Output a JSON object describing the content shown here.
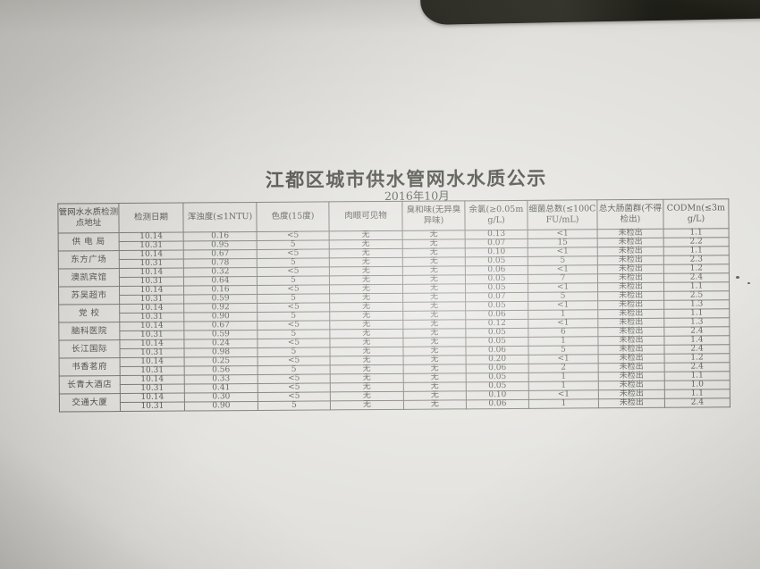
{
  "colors": {
    "background": "#11110b",
    "paper": "#deddd9",
    "ink": "#32322d",
    "table_border": "#5f5e56"
  },
  "document": {
    "title": "江都区城市供水管网水水质公示",
    "subtitle": "2016年10月"
  },
  "table": {
    "columns": [
      {
        "key": "location",
        "label": "管网水水质检测点地址"
      },
      {
        "key": "date",
        "label": "检测日期"
      },
      {
        "key": "turbidity",
        "label": "浑浊度(≤1NTU)"
      },
      {
        "key": "chroma",
        "label": "色度(15度)"
      },
      {
        "key": "visible",
        "label": "肉眼可见物"
      },
      {
        "key": "odor",
        "label": "臭和味(无异臭异味)"
      },
      {
        "key": "chlorine",
        "label": "余氯(≥0.05mg/L)"
      },
      {
        "key": "bacteria",
        "label": "细菌总数(≤100CFU/mL)"
      },
      {
        "key": "coliform",
        "label": "总大肠菌群(不得检出)"
      },
      {
        "key": "codmn",
        "label": "CODMn(≤3mg/L)"
      }
    ],
    "groups": [
      {
        "location": "供 电 局",
        "rows": [
          {
            "date": "10.14",
            "turbidity": "0.16",
            "chroma": "<5",
            "visible": "无",
            "odor": "无",
            "chlorine": "0.13",
            "bacteria": "<1",
            "coliform": "未检出",
            "codmn": "1.1"
          },
          {
            "date": "10.31",
            "turbidity": "0.95",
            "chroma": "5",
            "visible": "无",
            "odor": "无",
            "chlorine": "0.07",
            "bacteria": "15",
            "coliform": "未检出",
            "codmn": "2.2"
          }
        ]
      },
      {
        "location": "东方广场",
        "rows": [
          {
            "date": "10.14",
            "turbidity": "0.67",
            "chroma": "<5",
            "visible": "无",
            "odor": "无",
            "chlorine": "0.10",
            "bacteria": "<1",
            "coliform": "未检出",
            "codmn": "1.1"
          },
          {
            "date": "10.31",
            "turbidity": "0.78",
            "chroma": "5",
            "visible": "无",
            "odor": "无",
            "chlorine": "0.05",
            "bacteria": "5",
            "coliform": "未检出",
            "codmn": "2.3"
          }
        ]
      },
      {
        "location": "澳凯宾馆",
        "rows": [
          {
            "date": "10.14",
            "turbidity": "0.32",
            "chroma": "<5",
            "visible": "无",
            "odor": "无",
            "chlorine": "0.06",
            "bacteria": "<1",
            "coliform": "未检出",
            "codmn": "1.2"
          },
          {
            "date": "10.31",
            "turbidity": "0.64",
            "chroma": "5",
            "visible": "无",
            "odor": "无",
            "chlorine": "0.05",
            "bacteria": "7",
            "coliform": "未检出",
            "codmn": "2.4"
          }
        ]
      },
      {
        "location": "苏吴超市",
        "rows": [
          {
            "date": "10.14",
            "turbidity": "0.16",
            "chroma": "<5",
            "visible": "无",
            "odor": "无",
            "chlorine": "0.05",
            "bacteria": "<1",
            "coliform": "未检出",
            "codmn": "1.1"
          },
          {
            "date": "10.31",
            "turbidity": "0.59",
            "chroma": "5",
            "visible": "无",
            "odor": "无",
            "chlorine": "0.07",
            "bacteria": "5",
            "coliform": "未检出",
            "codmn": "2.5"
          }
        ]
      },
      {
        "location": "党  校",
        "rows": [
          {
            "date": "10.14",
            "turbidity": "0.92",
            "chroma": "<5",
            "visible": "无",
            "odor": "无",
            "chlorine": "0.05",
            "bacteria": "<1",
            "coliform": "未检出",
            "codmn": "1.3"
          },
          {
            "date": "10.31",
            "turbidity": "0.90",
            "chroma": "5",
            "visible": "无",
            "odor": "无",
            "chlorine": "0.06",
            "bacteria": "1",
            "coliform": "未检出",
            "codmn": "1.1"
          }
        ]
      },
      {
        "location": "脑科医院",
        "rows": [
          {
            "date": "10.14",
            "turbidity": "0.67",
            "chroma": "<5",
            "visible": "无",
            "odor": "无",
            "chlorine": "0.12",
            "bacteria": "<1",
            "coliform": "未检出",
            "codmn": "1.3"
          },
          {
            "date": "10.31",
            "turbidity": "0.59",
            "chroma": "5",
            "visible": "无",
            "odor": "无",
            "chlorine": "0.05",
            "bacteria": "6",
            "coliform": "未检出",
            "codmn": "2.4"
          }
        ]
      },
      {
        "location": "长江国际",
        "rows": [
          {
            "date": "10.14",
            "turbidity": "0.24",
            "chroma": "<5",
            "visible": "无",
            "odor": "无",
            "chlorine": "0.05",
            "bacteria": "1",
            "coliform": "未检出",
            "codmn": "1.4"
          },
          {
            "date": "10.31",
            "turbidity": "0.98",
            "chroma": "5",
            "visible": "无",
            "odor": "无",
            "chlorine": "0.06",
            "bacteria": "5",
            "coliform": "未检出",
            "codmn": "2.4"
          }
        ]
      },
      {
        "location": "书香茗府",
        "rows": [
          {
            "date": "10.14",
            "turbidity": "0.25",
            "chroma": "<5",
            "visible": "无",
            "odor": "无",
            "chlorine": "0.20",
            "bacteria": "<1",
            "coliform": "未检出",
            "codmn": "1.2"
          },
          {
            "date": "10.31",
            "turbidity": "0.56",
            "chroma": "5",
            "visible": "无",
            "odor": "无",
            "chlorine": "0.06",
            "bacteria": "2",
            "coliform": "未检出",
            "codmn": "2.4"
          }
        ]
      },
      {
        "location": "长青大酒店",
        "rows": [
          {
            "date": "10.14",
            "turbidity": "0.33",
            "chroma": "<5",
            "visible": "无",
            "odor": "无",
            "chlorine": "0.05",
            "bacteria": "1",
            "coliform": "未检出",
            "codmn": "1.1"
          },
          {
            "date": "10.31",
            "turbidity": "0.41",
            "chroma": "<5",
            "visible": "无",
            "odor": "无",
            "chlorine": "0.05",
            "bacteria": "1",
            "coliform": "未检出",
            "codmn": "1.0"
          }
        ]
      },
      {
        "location": "交通大厦",
        "rows": [
          {
            "date": "10.14",
            "turbidity": "0.30",
            "chroma": "<5",
            "visible": "无",
            "odor": "无",
            "chlorine": "0.10",
            "bacteria": "<1",
            "coliform": "未检出",
            "codmn": "1.1"
          },
          {
            "date": "10.31",
            "turbidity": "0.90",
            "chroma": "5",
            "visible": "无",
            "odor": "无",
            "chlorine": "0.06",
            "bacteria": "1",
            "coliform": "未检出",
            "codmn": "2.4"
          }
        ]
      }
    ]
  }
}
